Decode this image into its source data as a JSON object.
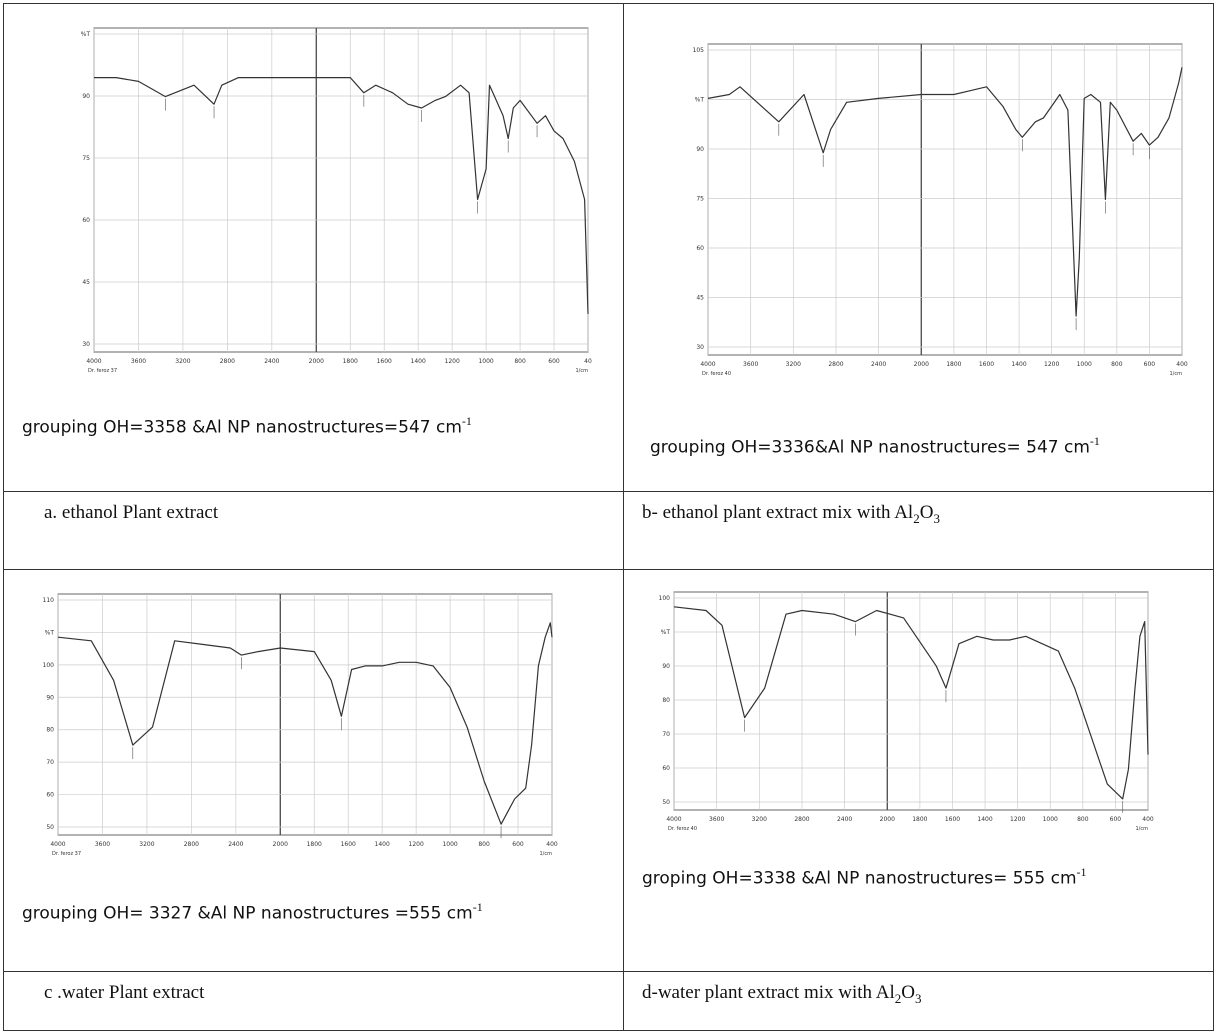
{
  "panels": [
    {
      "id": "a",
      "caption": {
        "prefix": "grouping OH=3358 &Al NP nanostructures=547 cm",
        "sup": "-1"
      },
      "label": {
        "text": "a. ethanol Plant extract",
        "sub": "",
        "suffix": ""
      },
      "y_ticks": [
        "%T",
        "90",
        "75",
        "60",
        "45",
        "30"
      ],
      "x_ticks": [
        "4000",
        "3600",
        "3200",
        "2800",
        "2400",
        "2000",
        "1800",
        "1600",
        "1400",
        "1200",
        "1000",
        "800",
        "600",
        "40"
      ],
      "footer": [
        "Dr. feroz 37",
        "1/cm"
      ]
    },
    {
      "id": "b",
      "caption": {
        "prefix": "grouping OH=3336&Al NP nanostructures= 547 cm",
        "sup": "-1"
      },
      "label": {
        "text": "b- ethanol plant extract mix with Al",
        "sub": "2",
        "mid": "O",
        "sub2": "3"
      },
      "y_ticks": [
        "105",
        "%T",
        "90",
        "75",
        "60",
        "45",
        "30"
      ],
      "x_ticks": [
        "4000",
        "3600",
        "3200",
        "2800",
        "2400",
        "2000",
        "1800",
        "1600",
        "1400",
        "1200",
        "1000",
        "800",
        "600",
        "400"
      ],
      "footer": [
        "Dr. feroz 40",
        "1/cm"
      ]
    },
    {
      "id": "c",
      "caption": {
        "prefix": "grouping  OH= 3327  &Al NP  nanostructures =555 cm",
        "sup": "-1"
      },
      "label": {
        "text": "c  .water Plant extract",
        "sub": "",
        "suffix": ""
      },
      "y_ticks": [
        "110",
        "%T",
        "100",
        "90",
        "80",
        "70",
        "60",
        "50"
      ],
      "x_ticks": [
        "4000",
        "3600",
        "3200",
        "2800",
        "2400",
        "2000",
        "1800",
        "1600",
        "1400",
        "1200",
        "1000",
        "800",
        "600",
        "400"
      ],
      "footer": [
        "Dr. feroz 37",
        "1/cm"
      ]
    },
    {
      "id": "d",
      "caption": {
        "prefix": "groping OH=3338    &Al NP nanostructures= 555 cm",
        "sup": "-1"
      },
      "label": {
        "text": "d-water  plant extract mix with Al",
        "sub": "2",
        "mid": "O",
        "sub2": "3"
      },
      "y_ticks": [
        "100",
        "%T",
        "90",
        "80",
        "70",
        "60",
        "50"
      ],
      "x_ticks": [
        "4000",
        "3600",
        "3200",
        "2800",
        "2400",
        "2000",
        "1800",
        "1600",
        "1400",
        "1200",
        "1000",
        "800",
        "600",
        "400"
      ],
      "footer": [
        "Dr. feroz 40",
        "1/cm"
      ]
    }
  ],
  "chart_data": [
    {
      "type": "line",
      "panel": "a",
      "x": [
        4000,
        3800,
        3600,
        3358,
        3100,
        2920,
        2850,
        2700,
        2400,
        2000,
        1800,
        1720,
        1650,
        1600,
        1550,
        1460,
        1380,
        1300,
        1240,
        1150,
        1100,
        1050,
        1000,
        980,
        960,
        900,
        870,
        840,
        800,
        700,
        650,
        600,
        547,
        480,
        420,
        400
      ],
      "y": [
        92,
        92,
        91,
        87,
        90,
        85,
        90,
        92,
        92,
        92,
        92,
        88,
        90,
        89,
        88,
        85,
        84,
        86,
        87,
        90,
        88,
        60,
        68,
        90,
        88,
        82,
        76,
        84,
        86,
        80,
        82,
        78,
        76,
        70,
        60,
        30
      ],
      "xlim": [
        4000,
        400
      ],
      "ylim": [
        20,
        105
      ]
    },
    {
      "type": "line",
      "panel": "b",
      "x": [
        4000,
        3800,
        3700,
        3336,
        3100,
        2920,
        2850,
        2700,
        2400,
        2000,
        1800,
        1700,
        1600,
        1500,
        1420,
        1380,
        1300,
        1250,
        1150,
        1100,
        1050,
        1030,
        1000,
        960,
        900,
        870,
        840,
        800,
        700,
        650,
        600,
        547,
        480,
        420,
        400
      ],
      "y": [
        96,
        97,
        99,
        90,
        97,
        82,
        88,
        95,
        96,
        97,
        97,
        98,
        99,
        94,
        88,
        86,
        90,
        91,
        97,
        93,
        40,
        55,
        96,
        97,
        95,
        70,
        95,
        93,
        85,
        87,
        84,
        86,
        91,
        100,
        104
      ],
      "xlim": [
        4000,
        400
      ],
      "ylim": [
        30,
        110
      ]
    },
    {
      "type": "line",
      "panel": "c",
      "x": [
        4000,
        3700,
        3500,
        3327,
        3150,
        2950,
        2700,
        2450,
        2350,
        2200,
        2000,
        1800,
        1700,
        1640,
        1580,
        1500,
        1400,
        1300,
        1200,
        1100,
        1000,
        900,
        800,
        700,
        620,
        555,
        520,
        480,
        440,
        410,
        400
      ],
      "y": [
        100,
        99,
        88,
        70,
        75,
        99,
        98,
        97,
        95,
        96,
        97,
        96,
        88,
        78,
        91,
        92,
        92,
        93,
        93,
        92,
        86,
        75,
        60,
        48,
        55,
        58,
        70,
        92,
        100,
        104,
        100
      ],
      "xlim": [
        4000,
        400
      ],
      "ylim": [
        45,
        112
      ]
    },
    {
      "type": "line",
      "panel": "d",
      "x": [
        4000,
        3700,
        3550,
        3338,
        3150,
        2950,
        2800,
        2500,
        2300,
        2100,
        1900,
        1700,
        1640,
        1560,
        1450,
        1350,
        1250,
        1150,
        1050,
        950,
        850,
        750,
        650,
        555,
        520,
        480,
        450,
        420,
        400
      ],
      "y": [
        100,
        99,
        95,
        70,
        78,
        98,
        99,
        98,
        96,
        99,
        97,
        84,
        78,
        90,
        92,
        91,
        91,
        92,
        90,
        88,
        78,
        65,
        52,
        48,
        56,
        78,
        92,
        96,
        60
      ],
      "xlim": [
        4000,
        400
      ],
      "ylim": [
        45,
        104
      ]
    }
  ]
}
